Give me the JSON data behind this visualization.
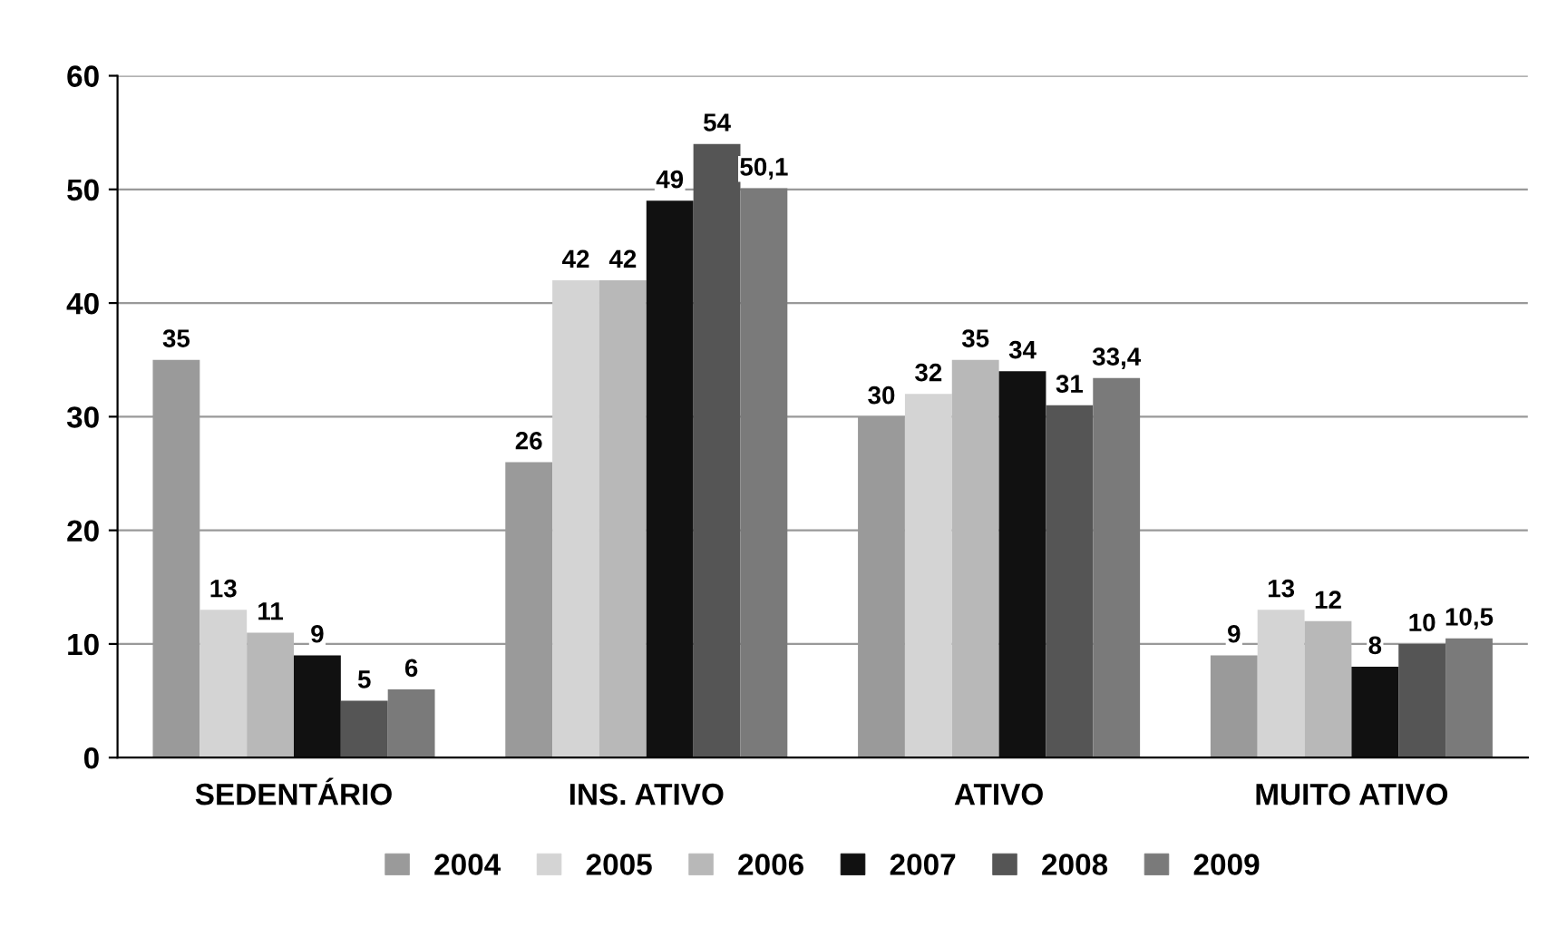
{
  "chart_data": {
    "type": "bar",
    "categories": [
      "SEDENTÁRIO",
      "INS. ATIVO",
      "ATIVO",
      "MUITO ATIVO"
    ],
    "series": [
      {
        "name": "2004",
        "color": "#9a9a9a",
        "values": [
          35,
          26,
          30,
          9
        ],
        "value_labels": [
          "35",
          "26",
          "30",
          "9"
        ]
      },
      {
        "name": "2005",
        "color": "#d4d4d4",
        "values": [
          13,
          42,
          32,
          13
        ],
        "value_labels": [
          "13",
          "42",
          "32",
          "13"
        ]
      },
      {
        "name": "2006",
        "color": "#b8b8b8",
        "values": [
          11,
          42,
          35,
          12
        ],
        "value_labels": [
          "11",
          "42",
          "35",
          "12"
        ]
      },
      {
        "name": "2007",
        "color": "#111111",
        "values": [
          9,
          49,
          34,
          8
        ],
        "value_labels": [
          "9",
          "49",
          "34",
          "8"
        ]
      },
      {
        "name": "2008",
        "color": "#555555",
        "values": [
          5,
          54,
          31,
          10
        ],
        "value_labels": [
          "5",
          "54",
          "31",
          "10"
        ]
      },
      {
        "name": "2009",
        "color": "#7a7a7a",
        "values": [
          6,
          50.1,
          33.4,
          10.5
        ],
        "value_labels": [
          "6",
          "50,1",
          "33,4",
          "10,5"
        ]
      }
    ],
    "ylim": [
      0,
      60
    ],
    "yticks": [
      0,
      10,
      20,
      30,
      40,
      50,
      60
    ],
    "grid": "y",
    "legend": "bottom"
  }
}
